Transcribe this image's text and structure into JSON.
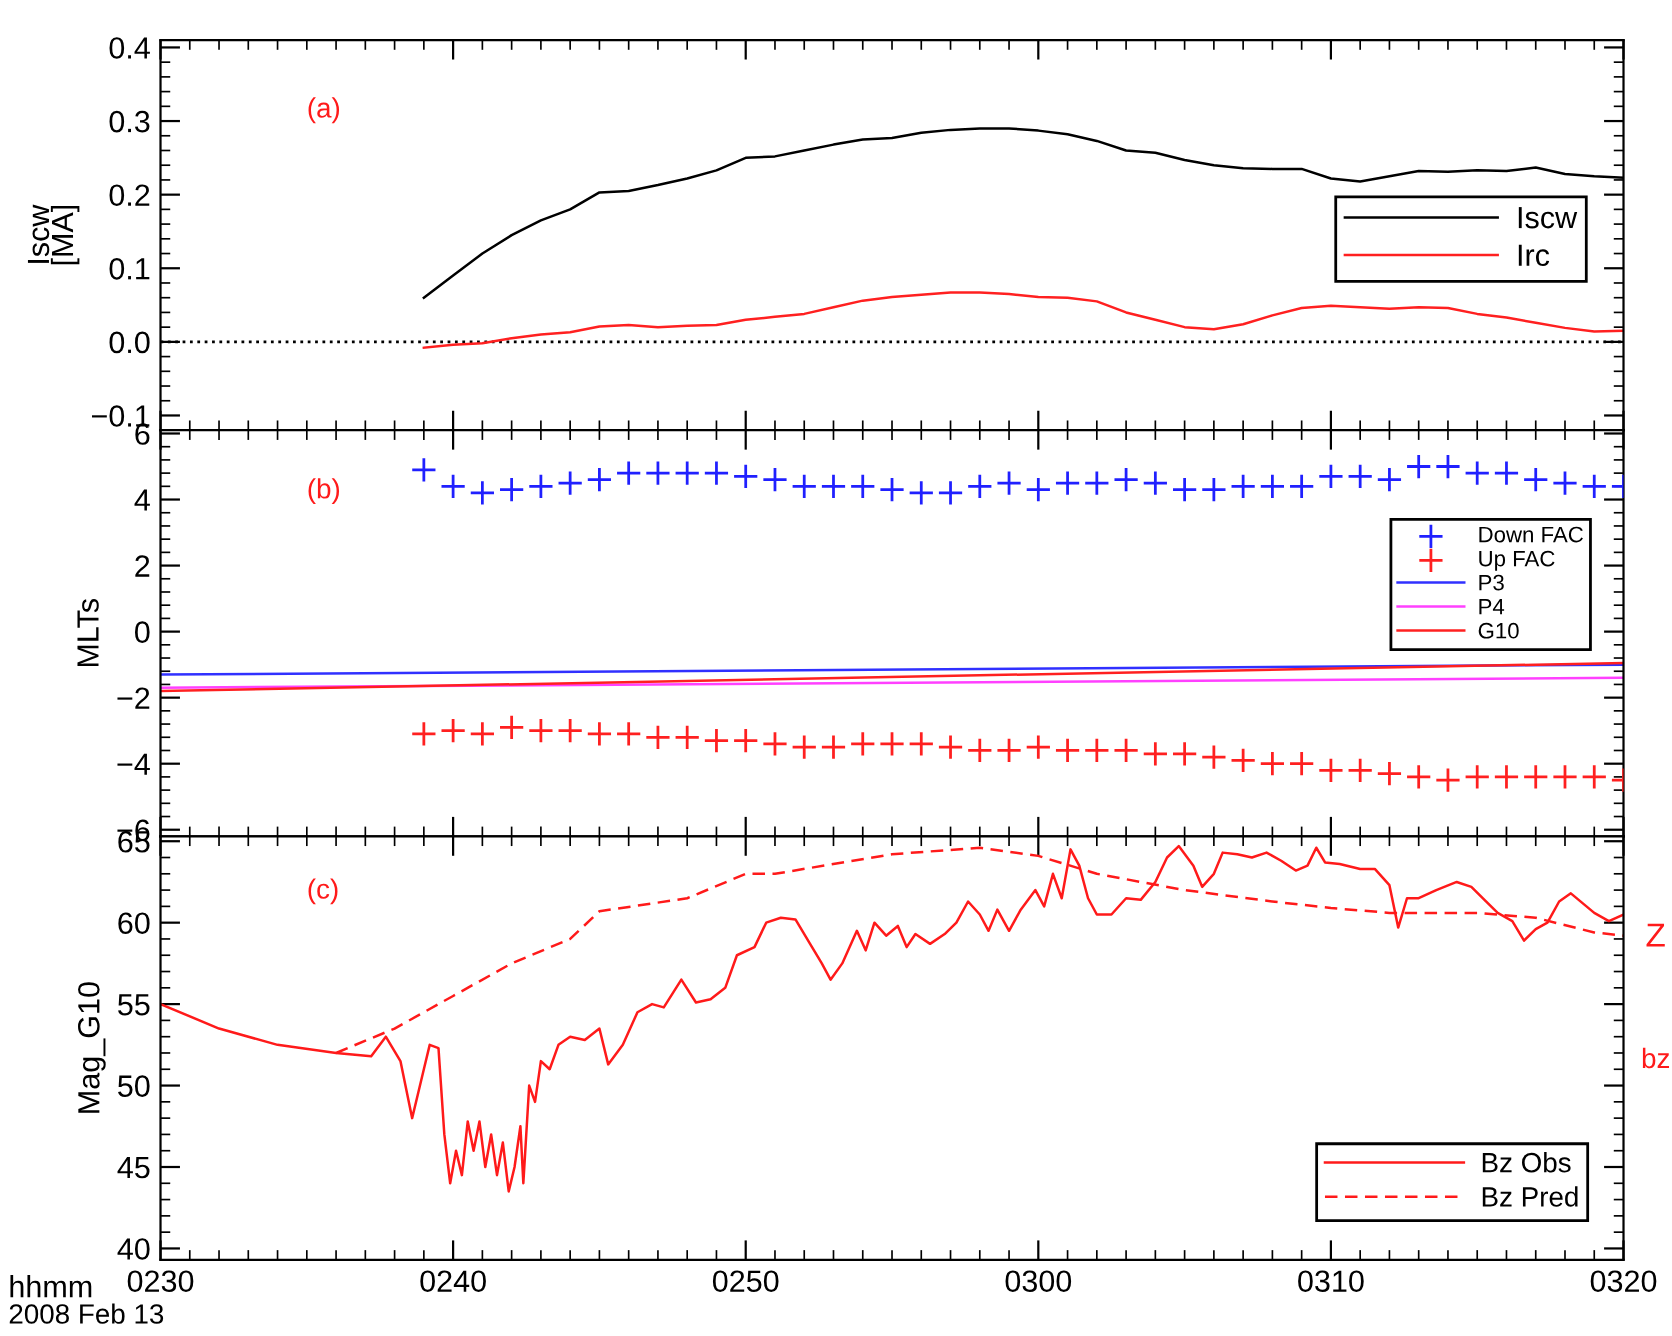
{
  "chart_data": [
    {
      "type": "line",
      "ylabel": "Iscw\n[MA]",
      "annotations": [
        "(a)"
      ],
      "x": [
        "2008-02-13T02:39",
        "2008-02-13T02:40",
        "2008-02-13T02:41",
        "2008-02-13T02:42",
        "2008-02-13T02:43",
        "2008-02-13T02:44",
        "2008-02-13T02:45",
        "2008-02-13T02:46",
        "2008-02-13T02:47",
        "2008-02-13T02:48",
        "2008-02-13T02:49",
        "2008-02-13T02:50",
        "2008-02-13T02:51",
        "2008-02-13T02:52",
        "2008-02-13T02:53",
        "2008-02-13T02:54",
        "2008-02-13T02:55",
        "2008-02-13T02:56",
        "2008-02-13T02:57",
        "2008-02-13T02:58",
        "2008-02-13T02:59",
        "2008-02-13T03:00",
        "2008-02-13T03:01",
        "2008-02-13T03:02",
        "2008-02-13T03:03",
        "2008-02-13T03:04",
        "2008-02-13T03:05",
        "2008-02-13T03:06",
        "2008-02-13T03:07",
        "2008-02-13T03:08",
        "2008-02-13T03:09",
        "2008-02-13T03:10",
        "2008-02-13T03:11",
        "2008-02-13T03:12",
        "2008-02-13T03:13",
        "2008-02-13T03:14",
        "2008-02-13T03:15",
        "2008-02-13T03:16",
        "2008-02-13T03:17",
        "2008-02-13T03:18",
        "2008-02-13T03:19",
        "2008-02-13T03:20"
      ],
      "series": [
        {
          "name": "Iscw",
          "color": "#000000",
          "values": [
            0.06,
            0.09,
            0.12,
            0.145,
            0.165,
            0.18,
            0.203,
            0.205,
            0.213,
            0.222,
            0.233,
            0.25,
            0.252,
            0.26,
            0.268,
            0.275,
            0.277,
            0.284,
            0.288,
            0.29,
            0.29,
            0.287,
            0.282,
            0.273,
            0.26,
            0.257,
            0.247,
            0.24,
            0.236,
            0.235,
            0.235,
            0.222,
            0.218,
            0.225,
            0.232,
            0.231,
            0.233,
            0.232,
            0.237,
            0.228,
            0.225,
            0.223
          ]
        },
        {
          "name": "Irc",
          "color": "#ff2020",
          "values": [
            -0.008,
            -0.004,
            -0.002,
            0.005,
            0.01,
            0.013,
            0.021,
            0.023,
            0.02,
            0.022,
            0.023,
            0.03,
            0.034,
            0.038,
            0.047,
            0.056,
            0.061,
            0.064,
            0.067,
            0.067,
            0.065,
            0.061,
            0.06,
            0.055,
            0.04,
            0.03,
            0.02,
            0.017,
            0.024,
            0.036,
            0.046,
            0.049,
            0.047,
            0.045,
            0.047,
            0.046,
            0.038,
            0.033,
            0.026,
            0.019,
            0.014,
            0.015
          ]
        }
      ],
      "ref_lines": [
        {
          "axis": "y",
          "value": 0,
          "color": "#000000",
          "line_style": "dotted"
        }
      ],
      "xlim": [
        "2008-02-13T02:30",
        "2008-02-13T03:20"
      ],
      "xticks": [
        {
          "value": "2008-02-13T02:30",
          "label": null
        },
        {
          "value": "2008-02-13T02:40",
          "label": null
        },
        {
          "value": "2008-02-13T02:50",
          "label": null
        },
        {
          "value": "2008-02-13T03:00",
          "label": null
        },
        {
          "value": "2008-02-13T03:10",
          "label": null
        },
        {
          "value": "2008-02-13T03:20",
          "label": null
        }
      ],
      "ylim": [
        -0.12,
        0.41
      ],
      "yticks": [
        {
          "value": -0.1,
          "label": "−0.1"
        },
        {
          "value": 0.0,
          "label": "0.0"
        },
        {
          "value": 0.1,
          "label": "0.1"
        },
        {
          "value": 0.2,
          "label": "0.2"
        },
        {
          "value": 0.3,
          "label": "0.3"
        },
        {
          "value": 0.4,
          "label": "0.4"
        }
      ],
      "tick_labels": "y",
      "legend": "right",
      "grid": false
    },
    {
      "type": "scatter",
      "ylabel": "MLTs",
      "annotations": [
        "(b)"
      ],
      "x": [
        "2008-02-13T02:39",
        "2008-02-13T02:40",
        "2008-02-13T02:41",
        "2008-02-13T02:42",
        "2008-02-13T02:43",
        "2008-02-13T02:44",
        "2008-02-13T02:45",
        "2008-02-13T02:46",
        "2008-02-13T02:47",
        "2008-02-13T02:48",
        "2008-02-13T02:49",
        "2008-02-13T02:50",
        "2008-02-13T02:51",
        "2008-02-13T02:52",
        "2008-02-13T02:53",
        "2008-02-13T02:54",
        "2008-02-13T02:55",
        "2008-02-13T02:56",
        "2008-02-13T02:57",
        "2008-02-13T02:58",
        "2008-02-13T02:59",
        "2008-02-13T03:00",
        "2008-02-13T03:01",
        "2008-02-13T03:02",
        "2008-02-13T03:03",
        "2008-02-13T03:04",
        "2008-02-13T03:05",
        "2008-02-13T03:06",
        "2008-02-13T03:07",
        "2008-02-13T03:08",
        "2008-02-13T03:09",
        "2008-02-13T03:10",
        "2008-02-13T03:11",
        "2008-02-13T03:12",
        "2008-02-13T03:13",
        "2008-02-13T03:14",
        "2008-02-13T03:15",
        "2008-02-13T03:16",
        "2008-02-13T03:17",
        "2008-02-13T03:18",
        "2008-02-13T03:19",
        "2008-02-13T03:20"
      ],
      "series": [
        {
          "name": "Down FAC",
          "color": "#2020ff",
          "marker": "cross",
          "values": [
            4.9,
            4.4,
            4.2,
            4.3,
            4.4,
            4.5,
            4.6,
            4.8,
            4.8,
            4.8,
            4.8,
            4.7,
            4.6,
            4.4,
            4.4,
            4.4,
            4.3,
            4.2,
            4.2,
            4.4,
            4.5,
            4.3,
            4.5,
            4.5,
            4.6,
            4.5,
            4.3,
            4.3,
            4.4,
            4.4,
            4.4,
            4.7,
            4.7,
            4.6,
            5.0,
            5.0,
            4.8,
            4.8,
            4.6,
            4.5,
            4.4,
            4.4
          ]
        },
        {
          "name": "Up FAC",
          "color": "#ff2020",
          "marker": "cross",
          "values": [
            -3.1,
            -3.0,
            -3.1,
            -2.9,
            -3.0,
            -3.0,
            -3.1,
            -3.1,
            -3.2,
            -3.2,
            -3.3,
            -3.3,
            -3.4,
            -3.5,
            -3.5,
            -3.4,
            -3.4,
            -3.4,
            -3.5,
            -3.6,
            -3.6,
            -3.5,
            -3.6,
            -3.6,
            -3.6,
            -3.7,
            -3.7,
            -3.8,
            -3.9,
            -4.0,
            -4.0,
            -4.2,
            -4.2,
            -4.3,
            -4.4,
            -4.5,
            -4.4,
            -4.4,
            -4.4,
            -4.4,
            -4.4,
            -4.5
          ]
        },
        {
          "name": "P3",
          "type": "line",
          "color": "#3030ff",
          "x": [
            "2008-02-13T02:30",
            "2008-02-13T03:20"
          ],
          "values": [
            -1.3,
            -1.0
          ]
        },
        {
          "name": "P4",
          "type": "line",
          "color": "#ff40ff",
          "x": [
            "2008-02-13T02:30",
            "2008-02-13T03:20"
          ],
          "values": [
            -1.7,
            -1.4
          ]
        },
        {
          "name": "G10",
          "type": "line",
          "color": "#ff2020",
          "x": [
            "2008-02-13T02:30",
            "2008-02-13T03:20"
          ],
          "values": [
            -1.8,
            -0.95
          ]
        }
      ],
      "xlim": [
        "2008-02-13T02:30",
        "2008-02-13T03:20"
      ],
      "xticks": [
        {
          "value": "2008-02-13T02:30",
          "label": null
        },
        {
          "value": "2008-02-13T02:40",
          "label": null
        },
        {
          "value": "2008-02-13T02:50",
          "label": null
        },
        {
          "value": "2008-02-13T03:00",
          "label": null
        },
        {
          "value": "2008-02-13T03:10",
          "label": null
        },
        {
          "value": "2008-02-13T03:20",
          "label": null
        }
      ],
      "ylim": [
        -6.2,
        6.1
      ],
      "yticks": [
        {
          "value": -6,
          "label": "−6"
        },
        {
          "value": -4,
          "label": "−4"
        },
        {
          "value": -2,
          "label": "−2"
        },
        0,
        2,
        4,
        6
      ],
      "tick_labels": "y",
      "legend": "right",
      "grid": false
    },
    {
      "type": "line",
      "ylabel": "Mag_G10",
      "xlabel": "hhmm",
      "annotations": [
        "(c)",
        "Z",
        "bz",
        "2008 Feb 13"
      ],
      "series": [
        {
          "name": "Bz Obs",
          "color": "#ff1a1a",
          "line_style": "solid",
          "x": [
            "2008-02-13T02:30:00",
            "2008-02-13T02:32:00",
            "2008-02-13T02:34:00",
            "2008-02-13T02:36:00",
            "2008-02-13T02:37:12",
            "2008-02-13T02:37:42",
            "2008-02-13T02:38:12",
            "2008-02-13T02:38:36",
            "2008-02-13T02:38:48",
            "2008-02-13T02:39:00",
            "2008-02-13T02:39:12",
            "2008-02-13T02:39:30",
            "2008-02-13T02:39:42",
            "2008-02-13T02:39:54",
            "2008-02-13T02:40:06",
            "2008-02-13T02:40:18",
            "2008-02-13T02:40:30",
            "2008-02-13T02:40:42",
            "2008-02-13T02:40:54",
            "2008-02-13T02:41:06",
            "2008-02-13T02:41:18",
            "2008-02-13T02:41:30",
            "2008-02-13T02:41:42",
            "2008-02-13T02:41:54",
            "2008-02-13T02:42:06",
            "2008-02-13T02:42:18",
            "2008-02-13T02:42:24",
            "2008-02-13T02:42:36",
            "2008-02-13T02:42:48",
            "2008-02-13T02:43:00",
            "2008-02-13T02:43:18",
            "2008-02-13T02:43:36",
            "2008-02-13T02:44:00",
            "2008-02-13T02:44:30",
            "2008-02-13T02:45:00",
            "2008-02-13T02:45:18",
            "2008-02-13T02:45:48",
            "2008-02-13T02:46:18",
            "2008-02-13T02:46:48",
            "2008-02-13T02:47:12",
            "2008-02-13T02:47:48",
            "2008-02-13T02:48:18",
            "2008-02-13T02:48:48",
            "2008-02-13T02:49:18",
            "2008-02-13T02:49:42",
            "2008-02-13T02:50:18",
            "2008-02-13T02:50:42",
            "2008-02-13T02:51:12",
            "2008-02-13T02:51:42",
            "2008-02-13T02:52:12",
            "2008-02-13T02:52:36",
            "2008-02-13T02:52:54",
            "2008-02-13T02:53:18",
            "2008-02-13T02:53:48",
            "2008-02-13T02:54:06",
            "2008-02-13T02:54:24",
            "2008-02-13T02:54:48",
            "2008-02-13T02:55:12",
            "2008-02-13T02:55:30",
            "2008-02-13T02:55:48",
            "2008-02-13T02:56:18",
            "2008-02-13T02:56:48",
            "2008-02-13T02:57:12",
            "2008-02-13T02:57:36",
            "2008-02-13T02:58:00",
            "2008-02-13T02:58:18",
            "2008-02-13T02:58:36",
            "2008-02-13T02:59:00",
            "2008-02-13T02:59:24",
            "2008-02-13T02:59:54",
            "2008-02-13T03:00:12",
            "2008-02-13T03:00:30",
            "2008-02-13T03:00:48",
            "2008-02-13T03:01:06",
            "2008-02-13T03:01:24",
            "2008-02-13T03:01:42",
            "2008-02-13T03:02:00",
            "2008-02-13T03:02:30",
            "2008-02-13T03:03:00",
            "2008-02-13T03:03:30",
            "2008-02-13T03:04:00",
            "2008-02-13T03:04:24",
            "2008-02-13T03:04:48",
            "2008-02-13T03:05:18",
            "2008-02-13T03:05:36",
            "2008-02-13T03:06:00",
            "2008-02-13T03:06:18",
            "2008-02-13T03:06:48",
            "2008-02-13T03:07:18",
            "2008-02-13T03:07:48",
            "2008-02-13T03:08:18",
            "2008-02-13T03:08:48",
            "2008-02-13T03:09:12",
            "2008-02-13T03:09:30",
            "2008-02-13T03:09:48",
            "2008-02-13T03:10:18",
            "2008-02-13T03:11:00",
            "2008-02-13T03:11:30",
            "2008-02-13T03:12:00",
            "2008-02-13T03:12:18",
            "2008-02-13T03:12:36",
            "2008-02-13T03:13:00",
            "2008-02-13T03:13:36",
            "2008-02-13T03:14:18",
            "2008-02-13T03:14:48",
            "2008-02-13T03:15:18",
            "2008-02-13T03:15:42",
            "2008-02-13T03:16:12",
            "2008-02-13T03:16:36",
            "2008-02-13T03:17:00",
            "2008-02-13T03:17:24",
            "2008-02-13T03:17:48",
            "2008-02-13T03:18:12",
            "2008-02-13T03:18:36",
            "2008-02-13T03:19:00",
            "2008-02-13T03:19:30",
            "2008-02-13T03:20:00"
          ],
          "values": [
            55.0,
            53.5,
            52.5,
            52.0,
            51.8,
            53.0,
            51.5,
            48.0,
            49.5,
            51,
            52.5,
            52.3,
            47,
            44,
            46,
            44.5,
            47.8,
            46,
            47.8,
            45,
            47,
            44.5,
            46.5,
            43.5,
            45,
            47.5,
            44,
            50,
            49,
            51.5,
            51,
            52.5,
            53,
            52.8,
            53.5,
            51.3,
            52.5,
            54.5,
            55,
            54.8,
            56.5,
            55.1,
            55.3,
            56,
            58,
            58.5,
            60,
            60.3,
            60.2,
            58.7,
            57.5,
            56.5,
            57.5,
            59.5,
            58.3,
            60,
            59.2,
            59.8,
            58.5,
            59.3,
            58.7,
            59.3,
            60,
            61.3,
            60.5,
            59.5,
            60.8,
            59.5,
            60.8,
            62,
            61,
            63,
            61.5,
            64.5,
            63.5,
            61.5,
            60.5,
            60.5,
            61.5,
            61.4,
            62.5,
            64,
            64.7,
            63.5,
            62.2,
            63,
            64.3,
            64.2,
            64,
            64.3,
            63.8,
            63.2,
            63.5,
            64.6,
            63.7,
            63.6,
            63.3,
            63.3,
            62.3,
            59.7,
            61.5,
            61.5,
            62,
            62.5,
            62.2,
            61.3,
            60.6,
            60.1,
            58.9,
            59.6,
            60,
            61.3,
            61.8,
            61.2,
            60.6,
            60.1,
            60.5
          ]
        },
        {
          "name": "Bz Pred",
          "color": "#ff1a1a",
          "line_style": "dashed",
          "x": [
            "2008-02-13T02:36",
            "2008-02-13T02:38",
            "2008-02-13T02:40",
            "2008-02-13T02:42",
            "2008-02-13T02:44",
            "2008-02-13T02:45",
            "2008-02-13T02:48",
            "2008-02-13T02:50",
            "2008-02-13T02:51",
            "2008-02-13T02:55",
            "2008-02-13T02:58",
            "2008-02-13T03:00",
            "2008-02-13T03:02",
            "2008-02-13T03:05",
            "2008-02-13T03:08",
            "2008-02-13T03:10",
            "2008-02-13T03:12",
            "2008-02-13T03:15",
            "2008-02-13T03:17",
            "2008-02-13T03:19",
            "2008-02-13T03:20"
          ],
          "values": [
            52,
            53.5,
            55.5,
            57.5,
            59,
            60.7,
            61.5,
            63,
            63,
            64.2,
            64.6,
            64.1,
            63,
            62,
            61.3,
            60.9,
            60.6,
            60.6,
            60.3,
            59.4,
            59.2
          ]
        }
      ],
      "xlim": [
        "2008-02-13T02:30",
        "2008-02-13T03:20"
      ],
      "xticks": [
        {
          "value": "2008-02-13T02:30",
          "label": "0230"
        },
        {
          "value": "2008-02-13T02:40",
          "label": "0240"
        },
        {
          "value": "2008-02-13T02:50",
          "label": "0250"
        },
        {
          "value": "2008-02-13T03:00",
          "label": "0300"
        },
        {
          "value": "2008-02-13T03:10",
          "label": "0310"
        },
        {
          "value": "2008-02-13T03:20",
          "label": "0320"
        }
      ],
      "ylim": [
        39.3,
        65.3
      ],
      "yticks": [
        40,
        45,
        50,
        55,
        60,
        65
      ],
      "legend": "bottom right",
      "grid": false
    }
  ]
}
